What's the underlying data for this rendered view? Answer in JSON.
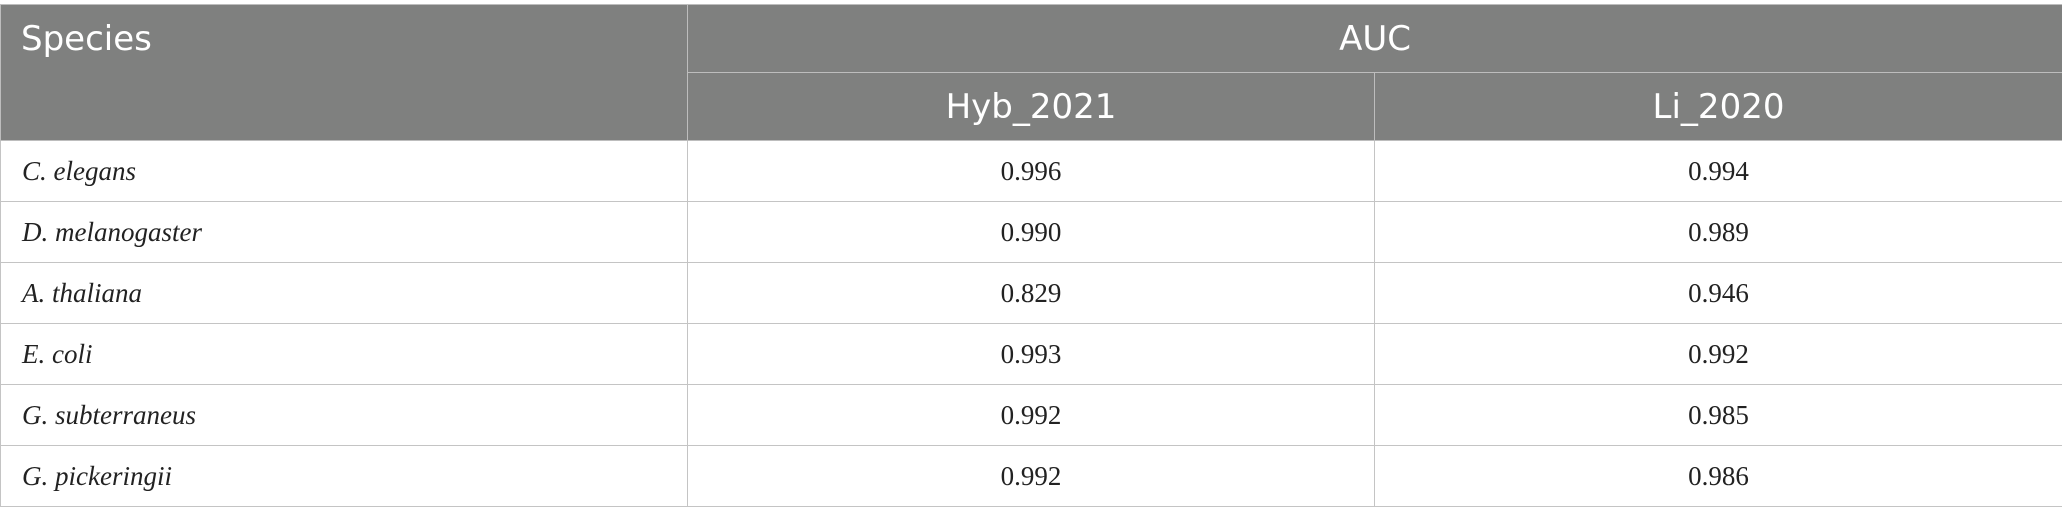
{
  "table": {
    "header": {
      "species": "Species",
      "metric": "AUC",
      "columns": [
        "Hyb_2021",
        "Li_2020"
      ]
    },
    "rows": [
      {
        "species": "C. elegans",
        "values": [
          "0.996",
          "0.994"
        ]
      },
      {
        "species": "D. melanogaster",
        "values": [
          "0.990",
          "0.989"
        ]
      },
      {
        "species": "A. thaliana",
        "values": [
          "0.829",
          "0.946"
        ]
      },
      {
        "species": "E. coli",
        "values": [
          "0.993",
          "0.992"
        ]
      },
      {
        "species": "G. subterraneus",
        "values": [
          "0.992",
          "0.985"
        ]
      },
      {
        "species": "G. pickeringii",
        "values": [
          "0.992",
          "0.986"
        ]
      }
    ]
  },
  "colors": {
    "header_background": "#7f807f",
    "header_text": "#ffffff",
    "grid": "#c4c4c4"
  }
}
